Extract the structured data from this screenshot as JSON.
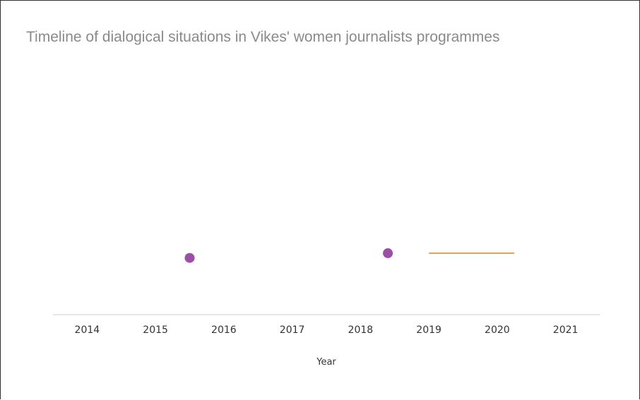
{
  "chart_data": {
    "type": "scatter",
    "title": "Timeline of dialogical situations in Vikes' women journalists programmes",
    "xlabel": "Year",
    "ylabel": "",
    "xlim": [
      2013.5,
      2021.5
    ],
    "ylim": [
      0,
      1
    ],
    "grid": false,
    "x_ticks": [
      "2014",
      "2015",
      "2016",
      "2017",
      "2018",
      "2019",
      "2020",
      "2021"
    ],
    "colors": {
      "point": "#9b4fa6",
      "segment": "#e0a24a",
      "axis": "#cccccc"
    },
    "points": [
      {
        "x": 2015.5,
        "y": 0.24
      },
      {
        "x": 2018.4,
        "y": 0.26
      }
    ],
    "segments": [
      {
        "x_start": 2019.0,
        "x_end": 2020.25,
        "y": 0.26
      }
    ]
  }
}
